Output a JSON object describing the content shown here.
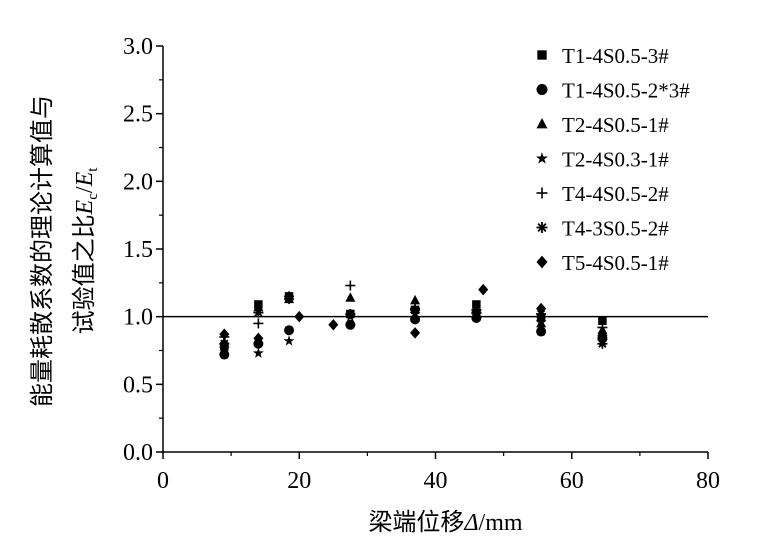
{
  "chart_data": {
    "type": "scatter",
    "xlabel": "梁端位移Δ/mm",
    "ylabel_line1": "能量耗散系数的理论计算值与",
    "ylabel_line2": "试验值之比Ec/Et",
    "xlim": [
      0,
      80
    ],
    "ylim": [
      0.0,
      3.0
    ],
    "x_ticks": [
      "0",
      "20",
      "40",
      "60",
      "80"
    ],
    "y_ticks": [
      "0.0",
      "0.5",
      "1.0",
      "1.5",
      "2.0",
      "2.5",
      "3.0"
    ],
    "reference_line_y": 1.0,
    "legend_position": "top-right",
    "series": [
      {
        "name": "T1-4S0.5-3#",
        "marker": "square",
        "points": [
          [
            9,
            0.78
          ],
          [
            14,
            1.09
          ],
          [
            18.5,
            1.15
          ],
          [
            27.5,
            1.02
          ],
          [
            37,
            1.05
          ],
          [
            46,
            1.09
          ],
          [
            55.5,
            0.99
          ],
          [
            64.5,
            0.97
          ]
        ]
      },
      {
        "name": "T1-4S0.5-2*3#",
        "marker": "circle",
        "points": [
          [
            9,
            0.72
          ],
          [
            14,
            0.8
          ],
          [
            18.5,
            0.9
          ],
          [
            27.5,
            0.94
          ],
          [
            37,
            0.98
          ],
          [
            46,
            0.99
          ],
          [
            55.5,
            0.89
          ],
          [
            64.5,
            0.84
          ]
        ]
      },
      {
        "name": "T2-4S0.5-1#",
        "marker": "triangle",
        "points": [
          [
            9,
            0.81
          ],
          [
            14,
            1.07
          ],
          [
            18.5,
            1.13
          ],
          [
            27.5,
            1.14
          ],
          [
            37,
            1.12
          ],
          [
            46,
            1.06
          ],
          [
            55.5,
            0.95
          ],
          [
            64.5,
            0.9
          ]
        ]
      },
      {
        "name": "T2-4S0.3-1#",
        "marker": "star",
        "points": [
          [
            9,
            0.76
          ],
          [
            14,
            0.73
          ],
          [
            18.5,
            0.82
          ],
          [
            27.5,
            1.0
          ],
          [
            37,
            1.02
          ],
          [
            46,
            1.01
          ],
          [
            55.5,
            0.96
          ],
          [
            64.5,
            0.82
          ]
        ]
      },
      {
        "name": "T4-4S0.5-2#",
        "marker": "plus",
        "points": [
          [
            9,
            0.85
          ],
          [
            14,
            0.95
          ],
          [
            18.5,
            1.13
          ],
          [
            27.5,
            1.23
          ],
          [
            37,
            1.06
          ],
          [
            46,
            1.03
          ],
          [
            55.5,
            1.0
          ],
          [
            64.5,
            0.92
          ]
        ]
      },
      {
        "name": "T4-3S0.5-2#",
        "marker": "asterisk",
        "points": [
          [
            9,
            0.8
          ],
          [
            14,
            1.03
          ],
          [
            18.5,
            1.15
          ],
          [
            27.5,
            1.02
          ],
          [
            37,
            1.05
          ],
          [
            46,
            1.05
          ],
          [
            55.5,
            1.02
          ],
          [
            64.5,
            0.8
          ]
        ]
      },
      {
        "name": "T5-4S0.5-1#",
        "marker": "diamond",
        "points": [
          [
            9,
            0.87
          ],
          [
            14,
            0.84
          ],
          [
            20,
            1.0
          ],
          [
            25,
            0.94
          ],
          [
            37,
            0.88
          ],
          [
            47,
            1.2
          ],
          [
            55.5,
            1.06
          ],
          [
            64.5,
            0.86
          ]
        ]
      }
    ]
  }
}
